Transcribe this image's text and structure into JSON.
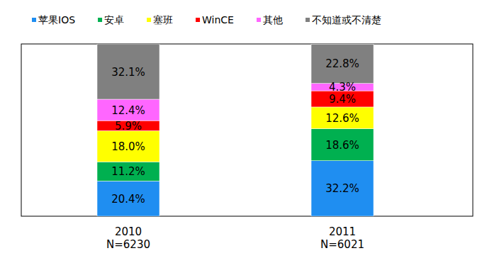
{
  "chart_data": {
    "type": "bar",
    "stacked": true,
    "data_labels": true,
    "tick_labels": false,
    "legend": "top",
    "categories": [
      "2010\nN=6230",
      "2011\nN=6021"
    ],
    "ylim": [
      0,
      100
    ],
    "series": [
      {
        "name": "苹果IOS",
        "color": "#1f8ef1",
        "values": [
          20.4,
          32.2
        ],
        "value_labels": [
          "20.4%",
          "32.2%"
        ]
      },
      {
        "name": "安卓",
        "color": "#00b050",
        "values": [
          11.2,
          18.6
        ],
        "value_labels": [
          "11.2%",
          "18.6%"
        ]
      },
      {
        "name": "塞班",
        "color": "#ffff00",
        "values": [
          18.0,
          12.6
        ],
        "value_labels": [
          "18.0%",
          "12.6%"
        ]
      },
      {
        "name": "WinCE",
        "color": "#ff0000",
        "values": [
          5.9,
          9.4
        ],
        "value_labels": [
          "5.9%",
          "9.4%"
        ]
      },
      {
        "name": "其他",
        "color": "#ff66ff",
        "values": [
          12.4,
          4.3
        ],
        "value_labels": [
          "12.4%",
          "4.3%"
        ]
      },
      {
        "name": "不知道或不清楚",
        "color": "#808080",
        "values": [
          32.1,
          22.8
        ],
        "value_labels": [
          "32.1%",
          "22.8%"
        ]
      }
    ]
  }
}
